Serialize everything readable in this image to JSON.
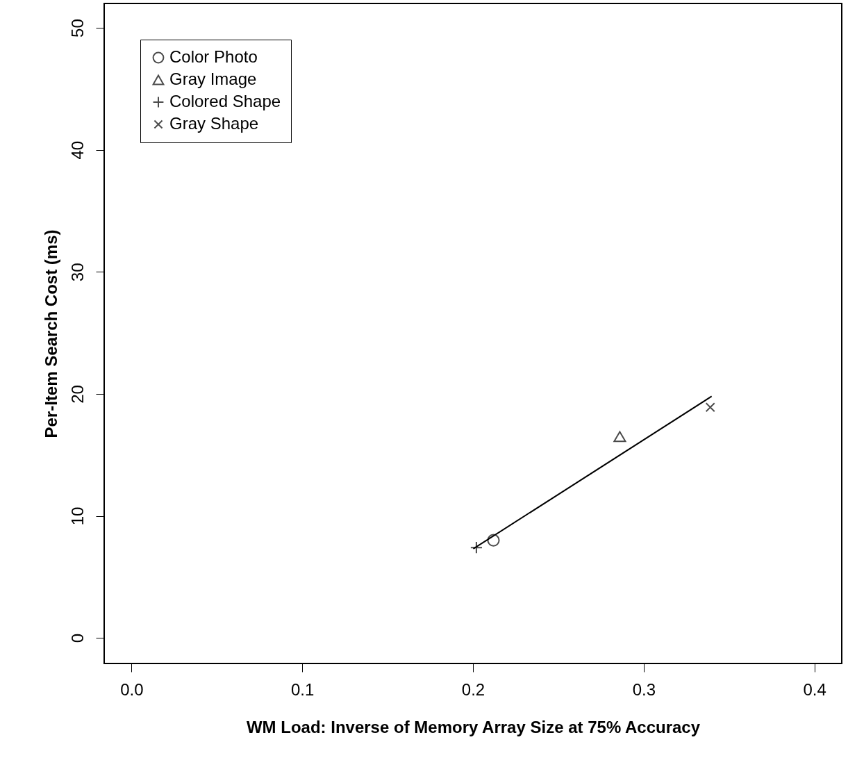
{
  "chart_data": {
    "type": "scatter",
    "xlabel": "WM Load: Inverse of Memory Array Size at 75% Accuracy",
    "ylabel": "Per-Item Search Cost (ms)",
    "xlim": [
      -0.016,
      0.416
    ],
    "ylim": [
      -2.1,
      52.0
    ],
    "xticks": [
      {
        "value": 0,
        "label": "0.0"
      },
      0.1,
      0.2,
      0.3,
      0.4
    ],
    "yticks": [
      0,
      10,
      20,
      30,
      40,
      50
    ],
    "grid": false,
    "legend": "top left",
    "series": [
      {
        "name": "Color Photo",
        "color": "#000000",
        "marker": "circle",
        "x": [
          0.212
        ],
        "values": [
          8.0
        ]
      },
      {
        "name": "Gray Image",
        "color": "#000000",
        "marker": "triangle",
        "x": [
          0.286
        ],
        "values": [
          16.5
        ]
      },
      {
        "name": "Colored Shape",
        "color": "#000000",
        "marker": "plus",
        "x": [
          0.202
        ],
        "values": [
          7.4
        ]
      },
      {
        "name": "Gray Shape",
        "color": "#000000",
        "marker": "cross",
        "x": [
          0.339
        ],
        "values": [
          18.9
        ]
      },
      {
        "type": "line",
        "color": "#000000",
        "marker": "none",
        "line_style": "solid",
        "x": [
          0.2002,
          0.3398
        ],
        "values": [
          7.3,
          19.8
        ]
      }
    ]
  }
}
